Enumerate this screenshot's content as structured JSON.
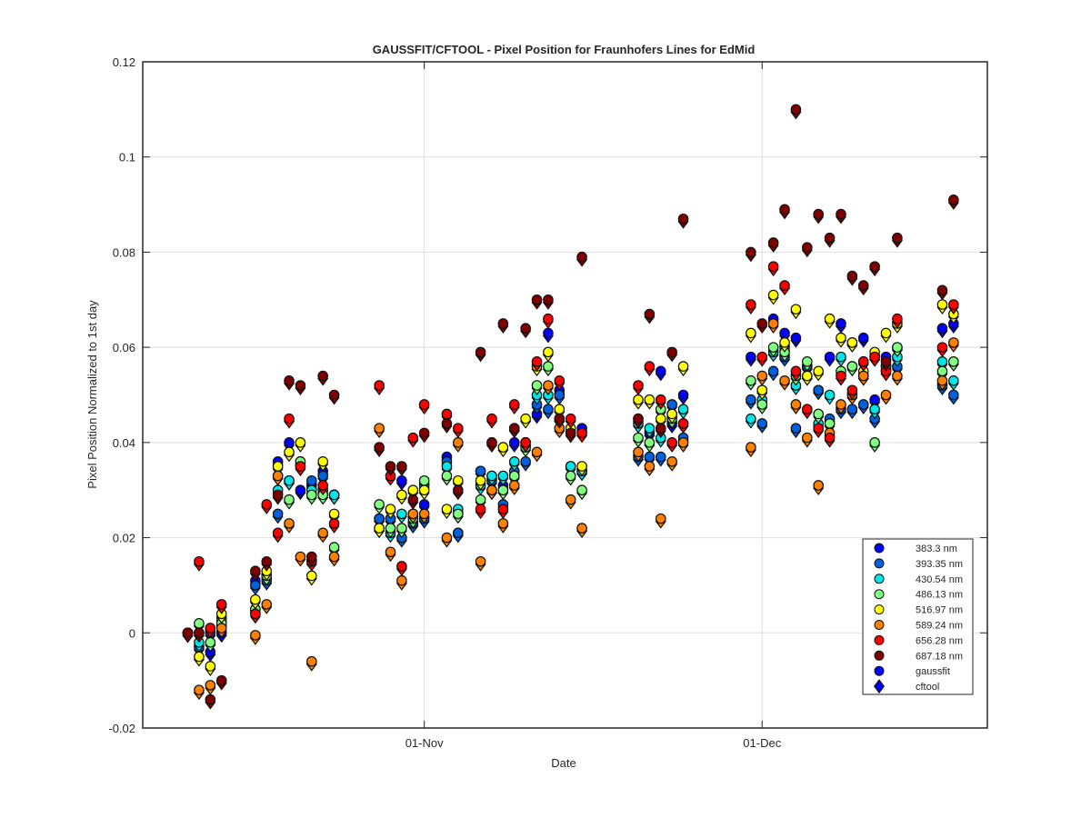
{
  "chart_data": {
    "type": "scatter",
    "title": "GAUSSFIT/CFTOOL - Pixel Position for Fraunhofers Lines for EdMid",
    "xlabel": "Date",
    "ylabel": "Pixel Position Normalized to 1st day",
    "xlim": [
      "2015-10-07",
      "2015-12-21"
    ],
    "ylim": [
      -0.02,
      0.12
    ],
    "yticks": [
      -0.02,
      0,
      0.02,
      0.04,
      0.06,
      0.08,
      0.1,
      0.12
    ],
    "ytick_labels": [
      "-0.02",
      "0",
      "0.02",
      "0.04",
      "0.06",
      "0.08",
      "0.1",
      "0.12"
    ],
    "xticks": [
      "2015-11-01",
      "2015-12-01"
    ],
    "xtick_labels": [
      "01-Nov",
      "01-Dec"
    ],
    "grid": true,
    "legend_position": "bottom-right",
    "marker_note": "circles = gaussfit, diamonds = cftool (cftool markers sit just below the matching circle)",
    "dates": [
      "2015-10-11",
      "2015-10-12",
      "2015-10-13",
      "2015-10-14",
      "2015-10-17",
      "2015-10-18",
      "2015-10-19",
      "2015-10-20",
      "2015-10-21",
      "2015-10-22",
      "2015-10-23",
      "2015-10-24",
      "2015-10-28",
      "2015-10-29",
      "2015-10-30",
      "2015-10-31",
      "2015-11-01",
      "2015-11-03",
      "2015-11-04",
      "2015-11-06",
      "2015-11-07",
      "2015-11-08",
      "2015-11-09",
      "2015-11-10",
      "2015-11-11",
      "2015-11-12",
      "2015-11-13",
      "2015-11-14",
      "2015-11-15",
      "2015-11-20",
      "2015-11-21",
      "2015-11-22",
      "2015-11-23",
      "2015-11-24",
      "2015-11-30",
      "2015-12-01",
      "2015-12-02",
      "2015-12-03",
      "2015-12-04",
      "2015-12-05",
      "2015-12-06",
      "2015-12-07",
      "2015-12-08",
      "2015-12-09",
      "2015-12-10",
      "2015-12-11",
      "2015-12-12",
      "2015-12-13",
      "2015-12-17",
      "2015-12-18"
    ],
    "series": [
      {
        "name": "383.3 nm",
        "color": "#0000ff",
        "values": [
          0,
          0,
          -0.004,
          0,
          0.011,
          0.012,
          0.036,
          0.04,
          0.03,
          0.031,
          0.034,
          0.029,
          0.024,
          0.024,
          0.032,
          0.023,
          0.027,
          0.037,
          0.021,
          0.034,
          0.033,
          0.031,
          0.04,
          0.04,
          0.046,
          0.063,
          0.051,
          0.042,
          0.043,
          0.045,
          0.042,
          0.055,
          0.044,
          0.05,
          0.058,
          0.051,
          0.066,
          0.063,
          0.062,
          0.056,
          0.051,
          0.058,
          0.065,
          0.061,
          0.062,
          0.049,
          0.058,
          0.06,
          0.064,
          0.065
        ]
      },
      {
        "name": "393.35 nm",
        "color": "#0060dd",
        "values": [
          0,
          -0.003,
          0,
          0.002,
          0.01,
          0.011,
          0.025,
          0.032,
          0.036,
          0.032,
          0.033,
          0.029,
          0.024,
          0.024,
          0.02,
          0.023,
          0.024,
          0.036,
          0.021,
          0.034,
          0.032,
          0.027,
          0.034,
          0.036,
          0.048,
          0.047,
          0.05,
          0.035,
          0.034,
          0.037,
          0.037,
          0.037,
          0.048,
          0.041,
          0.049,
          0.044,
          0.055,
          0.058,
          0.043,
          0.056,
          0.051,
          0.045,
          0.047,
          0.047,
          0.048,
          0.045,
          0.055,
          0.056,
          0.052,
          0.05
        ]
      },
      {
        "name": "430.54 nm",
        "color": "#00e6e6",
        "values": [
          0,
          -0.002,
          0.001,
          0.003,
          0.005,
          0.012,
          0.03,
          0.032,
          0.035,
          0.03,
          0.03,
          0.029,
          0.022,
          0.021,
          0.025,
          0.025,
          0.031,
          0.035,
          0.026,
          0.031,
          0.033,
          0.033,
          0.036,
          0.04,
          0.05,
          0.05,
          0.045,
          0.035,
          0.034,
          0.044,
          0.043,
          0.041,
          0.046,
          0.047,
          0.045,
          0.049,
          0.059,
          0.06,
          0.052,
          0.054,
          0.044,
          0.05,
          0.058,
          0.056,
          0.057,
          0.047,
          0.056,
          0.058,
          0.057,
          0.053
        ]
      },
      {
        "name": "486.13 nm",
        "color": "#80ff80",
        "values": [
          0,
          0.002,
          -0.002,
          0.002,
          0.005,
          0.012,
          0.033,
          0.028,
          0.036,
          0.029,
          0.029,
          0.018,
          0.027,
          0.022,
          0.022,
          0.024,
          0.032,
          0.033,
          0.025,
          0.028,
          0.03,
          0.03,
          0.033,
          0.039,
          0.052,
          0.056,
          0.045,
          0.033,
          0.03,
          0.041,
          0.04,
          0.047,
          0.045,
          0.044,
          0.053,
          0.048,
          0.06,
          0.059,
          0.054,
          0.057,
          0.046,
          0.044,
          0.055,
          0.056,
          0.054,
          0.04,
          0.056,
          0.06,
          0.055,
          0.057
        ]
      },
      {
        "name": "516.97 nm",
        "color": "#ffff00",
        "values": [
          0,
          -0.005,
          -0.007,
          0.004,
          0.007,
          0.013,
          0.035,
          0.038,
          0.04,
          0.012,
          0.036,
          0.025,
          0.022,
          0.026,
          0.029,
          0.03,
          0.03,
          0.026,
          0.032,
          0.032,
          0.04,
          0.039,
          0.043,
          0.045,
          0.056,
          0.059,
          0.047,
          0.043,
          0.035,
          0.049,
          0.049,
          0.045,
          0.046,
          0.056,
          0.063,
          0.051,
          0.071,
          0.061,
          0.068,
          0.054,
          0.055,
          0.066,
          0.062,
          0.061,
          0.055,
          0.059,
          0.063,
          0.065,
          0.069,
          0.067
        ]
      },
      {
        "name": "589.24 nm",
        "color": "#ff8000",
        "values": [
          0,
          -0.012,
          -0.011,
          0.001,
          -0.0005,
          0.006,
          0.033,
          0.023,
          0.016,
          -0.006,
          0.021,
          0.016,
          0.043,
          0.017,
          0.011,
          0.025,
          0.025,
          0.02,
          0.04,
          0.015,
          0.03,
          0.023,
          0.031,
          0.04,
          0.038,
          0.052,
          0.043,
          0.028,
          0.022,
          0.038,
          0.035,
          0.024,
          0.036,
          0.04,
          0.039,
          0.054,
          0.065,
          0.053,
          0.048,
          0.041,
          0.031,
          0.042,
          0.048,
          0.05,
          0.054,
          0.058,
          0.05,
          0.054,
          0.053,
          0.061
        ]
      },
      {
        "name": "656.28 nm",
        "color": "#ff0000",
        "values": [
          0,
          0.015,
          0.001,
          0.006,
          0.004,
          0.027,
          0.021,
          0.045,
          0.035,
          0.015,
          0.031,
          0.023,
          0.052,
          0.033,
          0.014,
          0.041,
          0.048,
          0.046,
          0.043,
          0.026,
          0.045,
          0.026,
          0.048,
          0.04,
          0.057,
          0.066,
          0.053,
          0.045,
          0.042,
          0.052,
          0.056,
          0.049,
          0.04,
          0.044,
          0.069,
          0.058,
          0.077,
          0.073,
          0.055,
          0.047,
          0.043,
          0.041,
          0.054,
          0.051,
          0.057,
          0.058,
          0.055,
          0.066,
          0.06,
          0.069
        ]
      },
      {
        "name": "687.18 nm",
        "color": "#800000",
        "values": [
          0,
          0,
          -0.014,
          -0.01,
          0.013,
          0.015,
          0.029,
          0.053,
          0.052,
          0.016,
          0.054,
          0.05,
          0.039,
          0.035,
          0.035,
          0.028,
          0.042,
          0.044,
          0.03,
          0.059,
          0.04,
          0.065,
          0.043,
          0.064,
          0.07,
          0.07,
          0.045,
          0.042,
          0.079,
          0.045,
          0.067,
          0.043,
          0.059,
          0.087,
          0.08,
          0.065,
          0.082,
          0.089,
          0.11,
          0.081,
          0.088,
          0.083,
          0.088,
          0.075,
          0.073,
          0.077,
          0.057,
          0.083,
          0.072,
          0.091
        ]
      }
    ],
    "legend_entries": [
      "383.3 nm",
      "393.35 nm",
      "430.54 nm",
      "486.13 nm",
      "516.97 nm",
      "589.24 nm",
      "656.28 nm",
      "687.18 nm",
      "gaussfit",
      "cftool"
    ]
  }
}
